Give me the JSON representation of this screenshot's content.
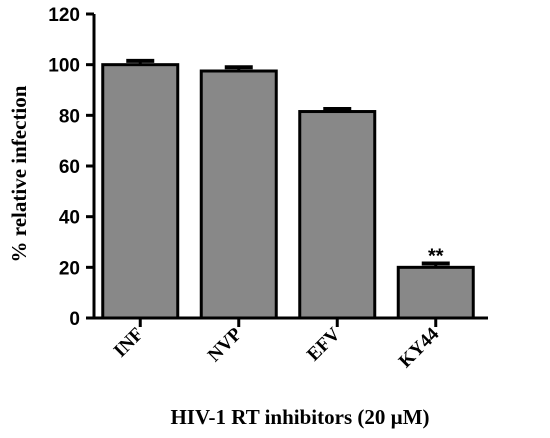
{
  "chart_data": {
    "type": "bar",
    "title": "",
    "xlabel": "HIV-1 RT inhibitors (20 µM)",
    "ylabel": "% relative infection",
    "categories": [
      "INF",
      "NVP",
      "EFV",
      "KY44"
    ],
    "values": [
      100.0,
      97.5,
      81.5,
      20.0
    ],
    "errors": [
      1.5,
      1.5,
      1.0,
      1.5
    ],
    "annotations": [
      "",
      "",
      "",
      "**"
    ],
    "ylim": [
      0,
      120
    ],
    "yticks": [
      0,
      20,
      40,
      60,
      80,
      100,
      120
    ],
    "bar_color": "#888888",
    "grid": false
  }
}
